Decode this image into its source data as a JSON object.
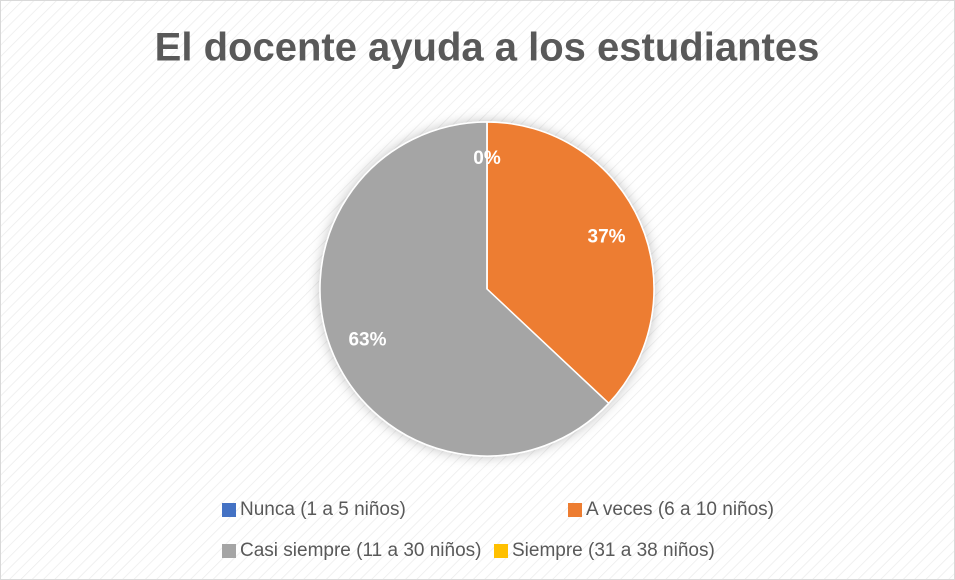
{
  "chart_data": {
    "type": "pie",
    "title": "El docente ayuda a los estudiantes",
    "categories": [
      "Nunca (1 a 5 niños)",
      "A veces (6 a 10 niños)",
      "Casi siempre (11 a 30 niños)",
      "Siempre (31 a 38 niños)"
    ],
    "values": [
      0,
      37,
      63,
      0
    ],
    "value_labels": [
      "0%",
      "37%",
      "63%",
      null
    ],
    "colors": [
      "#4472c4",
      "#ed7d31",
      "#a5a5a5",
      "#ffc000"
    ],
    "legend": "bottom"
  }
}
